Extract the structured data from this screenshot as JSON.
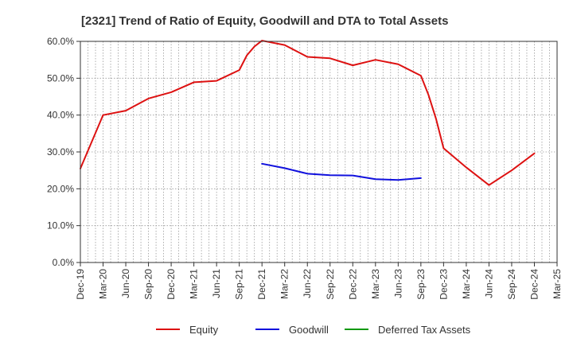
{
  "chart_data": {
    "type": "line",
    "title": "[2321]  Trend of Ratio of Equity, Goodwill and DTA to Total Assets",
    "xlabel": "",
    "ylabel": "",
    "ylim": [
      0,
      60
    ],
    "y_ticks": [
      0,
      10,
      20,
      30,
      40,
      50,
      60
    ],
    "y_tick_labels": [
      "0.0%",
      "10.0%",
      "20.0%",
      "30.0%",
      "40.0%",
      "50.0%",
      "60.0%"
    ],
    "x_tick_labels": [
      "Dec-19",
      "Mar-20",
      "Jun-20",
      "Sep-20",
      "Dec-20",
      "Mar-21",
      "Jun-21",
      "Sep-21",
      "Dec-21",
      "Mar-22",
      "Jun-22",
      "Sep-22",
      "Dec-22",
      "Mar-23",
      "Jun-23",
      "Sep-23",
      "Dec-23",
      "Mar-24",
      "Jun-24",
      "Sep-24",
      "Dec-24",
      "Mar-25"
    ],
    "x_range": [
      0,
      63
    ],
    "grid": true,
    "legend_position": "bottom",
    "series": [
      {
        "name": "Equity",
        "color": "#dd1111",
        "points": [
          [
            0,
            25.5
          ],
          [
            3,
            40.0
          ],
          [
            6,
            41.2
          ],
          [
            9,
            44.5
          ],
          [
            12,
            46.2
          ],
          [
            15,
            48.9
          ],
          [
            18,
            49.3
          ],
          [
            21,
            52.2
          ],
          [
            22,
            56.2
          ],
          [
            23,
            58.6
          ],
          [
            24,
            60.2
          ],
          [
            27,
            59.0
          ],
          [
            30,
            55.8
          ],
          [
            33,
            55.4
          ],
          [
            36,
            53.5
          ],
          [
            39,
            55.0
          ],
          [
            42,
            53.8
          ],
          [
            45,
            50.7
          ],
          [
            46,
            45.5
          ],
          [
            47,
            39.0
          ],
          [
            48,
            31.0
          ],
          [
            51,
            25.8
          ],
          [
            54,
            21.0
          ],
          [
            57,
            25.0
          ],
          [
            60,
            29.6
          ]
        ]
      },
      {
        "name": "Goodwill",
        "color": "#1111dd",
        "points": [
          [
            24,
            26.8
          ],
          [
            27,
            25.6
          ],
          [
            30,
            24.1
          ],
          [
            33,
            23.7
          ],
          [
            36,
            23.6
          ],
          [
            39,
            22.6
          ],
          [
            42,
            22.4
          ],
          [
            45,
            22.9
          ]
        ]
      },
      {
        "name": "Deferred Tax Assets",
        "color": "#119911",
        "points": []
      }
    ]
  }
}
